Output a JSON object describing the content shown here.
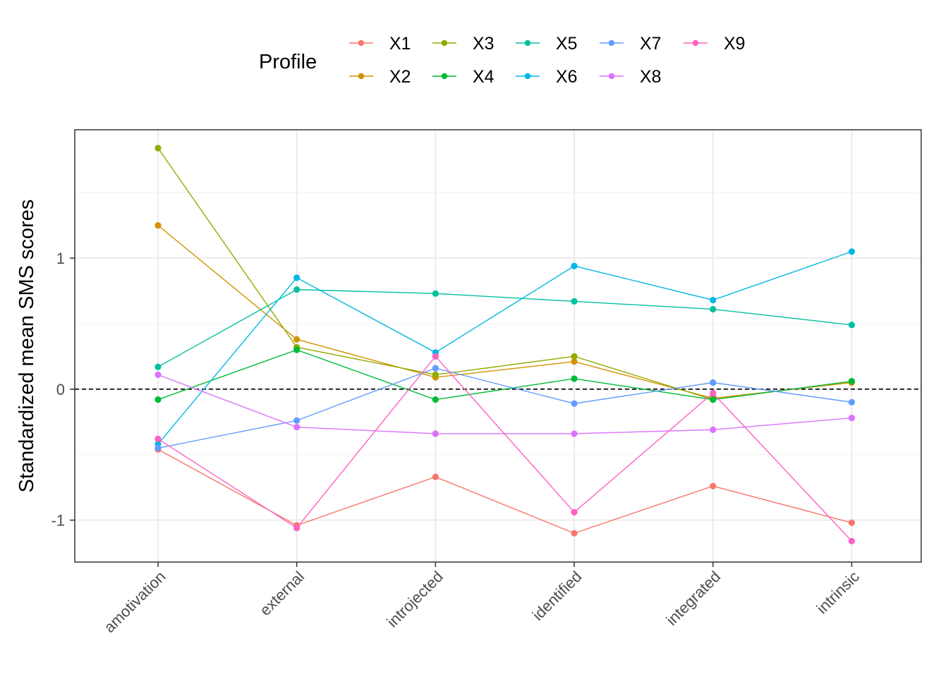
{
  "chart_data": {
    "type": "line",
    "title": "",
    "xlabel": "",
    "ylabel": "Standardized mean SMS scores",
    "categories": [
      "amotivation",
      "external",
      "introjected",
      "identified",
      "integrated",
      "intrinsic"
    ],
    "y_ticks": [
      {
        "value": -1,
        "label": "-1"
      },
      {
        "value": 0,
        "label": "0"
      },
      {
        "value": 1,
        "label": "1"
      }
    ],
    "ylim": [
      -1.32,
      1.98
    ],
    "grid": true,
    "reference_line": {
      "value": 0,
      "style": "dashed",
      "color": "#000000"
    },
    "legend": {
      "title": "Profile",
      "position": "top"
    },
    "series": [
      {
        "name": "X1",
        "color": "#F8766D",
        "values": [
          -0.46,
          -1.04,
          -0.67,
          -1.1,
          -0.74,
          -1.02
        ]
      },
      {
        "name": "X2",
        "color": "#D39200",
        "values": [
          1.25,
          0.38,
          0.09,
          0.21,
          -0.07,
          0.05
        ]
      },
      {
        "name": "X3",
        "color": "#93AA00",
        "values": [
          1.84,
          0.32,
          0.11,
          0.25,
          -0.08,
          0.06
        ]
      },
      {
        "name": "X4",
        "color": "#00BA38",
        "values": [
          -0.08,
          0.3,
          -0.08,
          0.08,
          -0.08,
          0.06
        ]
      },
      {
        "name": "X5",
        "color": "#00C19F",
        "values": [
          0.17,
          0.76,
          0.73,
          0.67,
          0.61,
          0.49
        ]
      },
      {
        "name": "X6",
        "color": "#00B9E3",
        "values": [
          -0.42,
          0.85,
          0.28,
          0.94,
          0.68,
          1.05
        ]
      },
      {
        "name": "X7",
        "color": "#619CFF",
        "values": [
          -0.45,
          -0.24,
          0.16,
          -0.11,
          0.05,
          -0.1
        ]
      },
      {
        "name": "X8",
        "color": "#DB72FB",
        "values": [
          0.11,
          -0.29,
          -0.34,
          -0.34,
          -0.31,
          -0.22
        ]
      },
      {
        "name": "X9",
        "color": "#FF61C3",
        "values": [
          -0.38,
          -1.06,
          0.25,
          -0.94,
          -0.03,
          -1.16
        ]
      }
    ]
  }
}
